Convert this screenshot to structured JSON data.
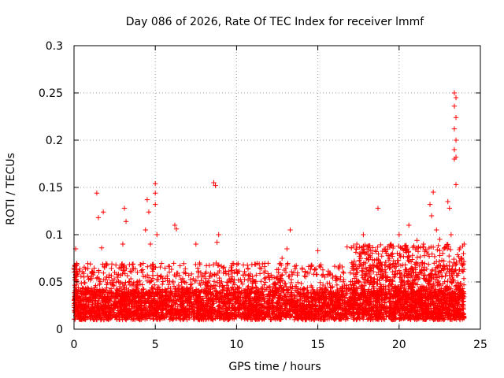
{
  "chart_data": {
    "type": "scatter",
    "title": "Day 086 of 2026, Rate Of TEC Index for receiver lmmf",
    "xlabel": "GPS time / hours",
    "ylabel": "ROTI / TECUs",
    "xlim": [
      0,
      25
    ],
    "ylim": [
      0,
      0.3
    ],
    "xticks": [
      0,
      5,
      10,
      15,
      20,
      25
    ],
    "xtick_labels": [
      "0",
      "5",
      "10",
      "15",
      "20",
      "25"
    ],
    "yticks": [
      0,
      0.05,
      0.1,
      0.15,
      0.2,
      0.25,
      0.3
    ],
    "ytick_labels": [
      "0",
      "0.05",
      "0.1",
      "0.15",
      "0.2",
      "0.25",
      "0.3"
    ],
    "grid": true,
    "marker": "+",
    "marker_color": "#ff0000",
    "data_range": [
      0,
      24
    ],
    "baseline_band": [
      0.01,
      0.04
    ],
    "series": [
      {
        "name": "ROTI",
        "notable_points": [
          {
            "x": 0.1,
            "y": 0.085
          },
          {
            "x": 1.4,
            "y": 0.144
          },
          {
            "x": 1.5,
            "y": 0.118
          },
          {
            "x": 1.8,
            "y": 0.124
          },
          {
            "x": 1.7,
            "y": 0.086
          },
          {
            "x": 2.5,
            "y": 0.06
          },
          {
            "x": 3.1,
            "y": 0.128
          },
          {
            "x": 3.2,
            "y": 0.114
          },
          {
            "x": 3.0,
            "y": 0.09
          },
          {
            "x": 4.5,
            "y": 0.137
          },
          {
            "x": 4.6,
            "y": 0.124
          },
          {
            "x": 4.4,
            "y": 0.105
          },
          {
            "x": 4.7,
            "y": 0.09
          },
          {
            "x": 5.0,
            "y": 0.154
          },
          {
            "x": 5.0,
            "y": 0.144
          },
          {
            "x": 5.0,
            "y": 0.132
          },
          {
            "x": 5.1,
            "y": 0.1
          },
          {
            "x": 6.2,
            "y": 0.11
          },
          {
            "x": 6.3,
            "y": 0.106
          },
          {
            "x": 7.5,
            "y": 0.09
          },
          {
            "x": 8.6,
            "y": 0.155
          },
          {
            "x": 8.7,
            "y": 0.152
          },
          {
            "x": 8.9,
            "y": 0.1
          },
          {
            "x": 8.8,
            "y": 0.092
          },
          {
            "x": 12.8,
            "y": 0.075
          },
          {
            "x": 13.1,
            "y": 0.085
          },
          {
            "x": 13.3,
            "y": 0.105
          },
          {
            "x": 15.0,
            "y": 0.083
          },
          {
            "x": 16.3,
            "y": 0.064
          },
          {
            "x": 16.8,
            "y": 0.087
          },
          {
            "x": 17.4,
            "y": 0.09
          },
          {
            "x": 17.8,
            "y": 0.1
          },
          {
            "x": 18.7,
            "y": 0.128
          },
          {
            "x": 19.5,
            "y": 0.09
          },
          {
            "x": 20.0,
            "y": 0.1
          },
          {
            "x": 20.6,
            "y": 0.11
          },
          {
            "x": 21.1,
            "y": 0.094
          },
          {
            "x": 21.5,
            "y": 0.09
          },
          {
            "x": 21.9,
            "y": 0.132
          },
          {
            "x": 22.1,
            "y": 0.145
          },
          {
            "x": 22.0,
            "y": 0.12
          },
          {
            "x": 22.3,
            "y": 0.105
          },
          {
            "x": 22.5,
            "y": 0.095
          },
          {
            "x": 23.0,
            "y": 0.135
          },
          {
            "x": 23.1,
            "y": 0.128
          },
          {
            "x": 23.2,
            "y": 0.1
          },
          {
            "x": 23.4,
            "y": 0.25
          },
          {
            "x": 23.5,
            "y": 0.245
          },
          {
            "x": 23.4,
            "y": 0.236
          },
          {
            "x": 23.5,
            "y": 0.224
          },
          {
            "x": 23.4,
            "y": 0.212
          },
          {
            "x": 23.5,
            "y": 0.2
          },
          {
            "x": 23.4,
            "y": 0.19
          },
          {
            "x": 23.5,
            "y": 0.182
          },
          {
            "x": 23.4,
            "y": 0.18
          },
          {
            "x": 23.5,
            "y": 0.153
          },
          {
            "x": 24.0,
            "y": 0.09
          }
        ]
      }
    ]
  }
}
